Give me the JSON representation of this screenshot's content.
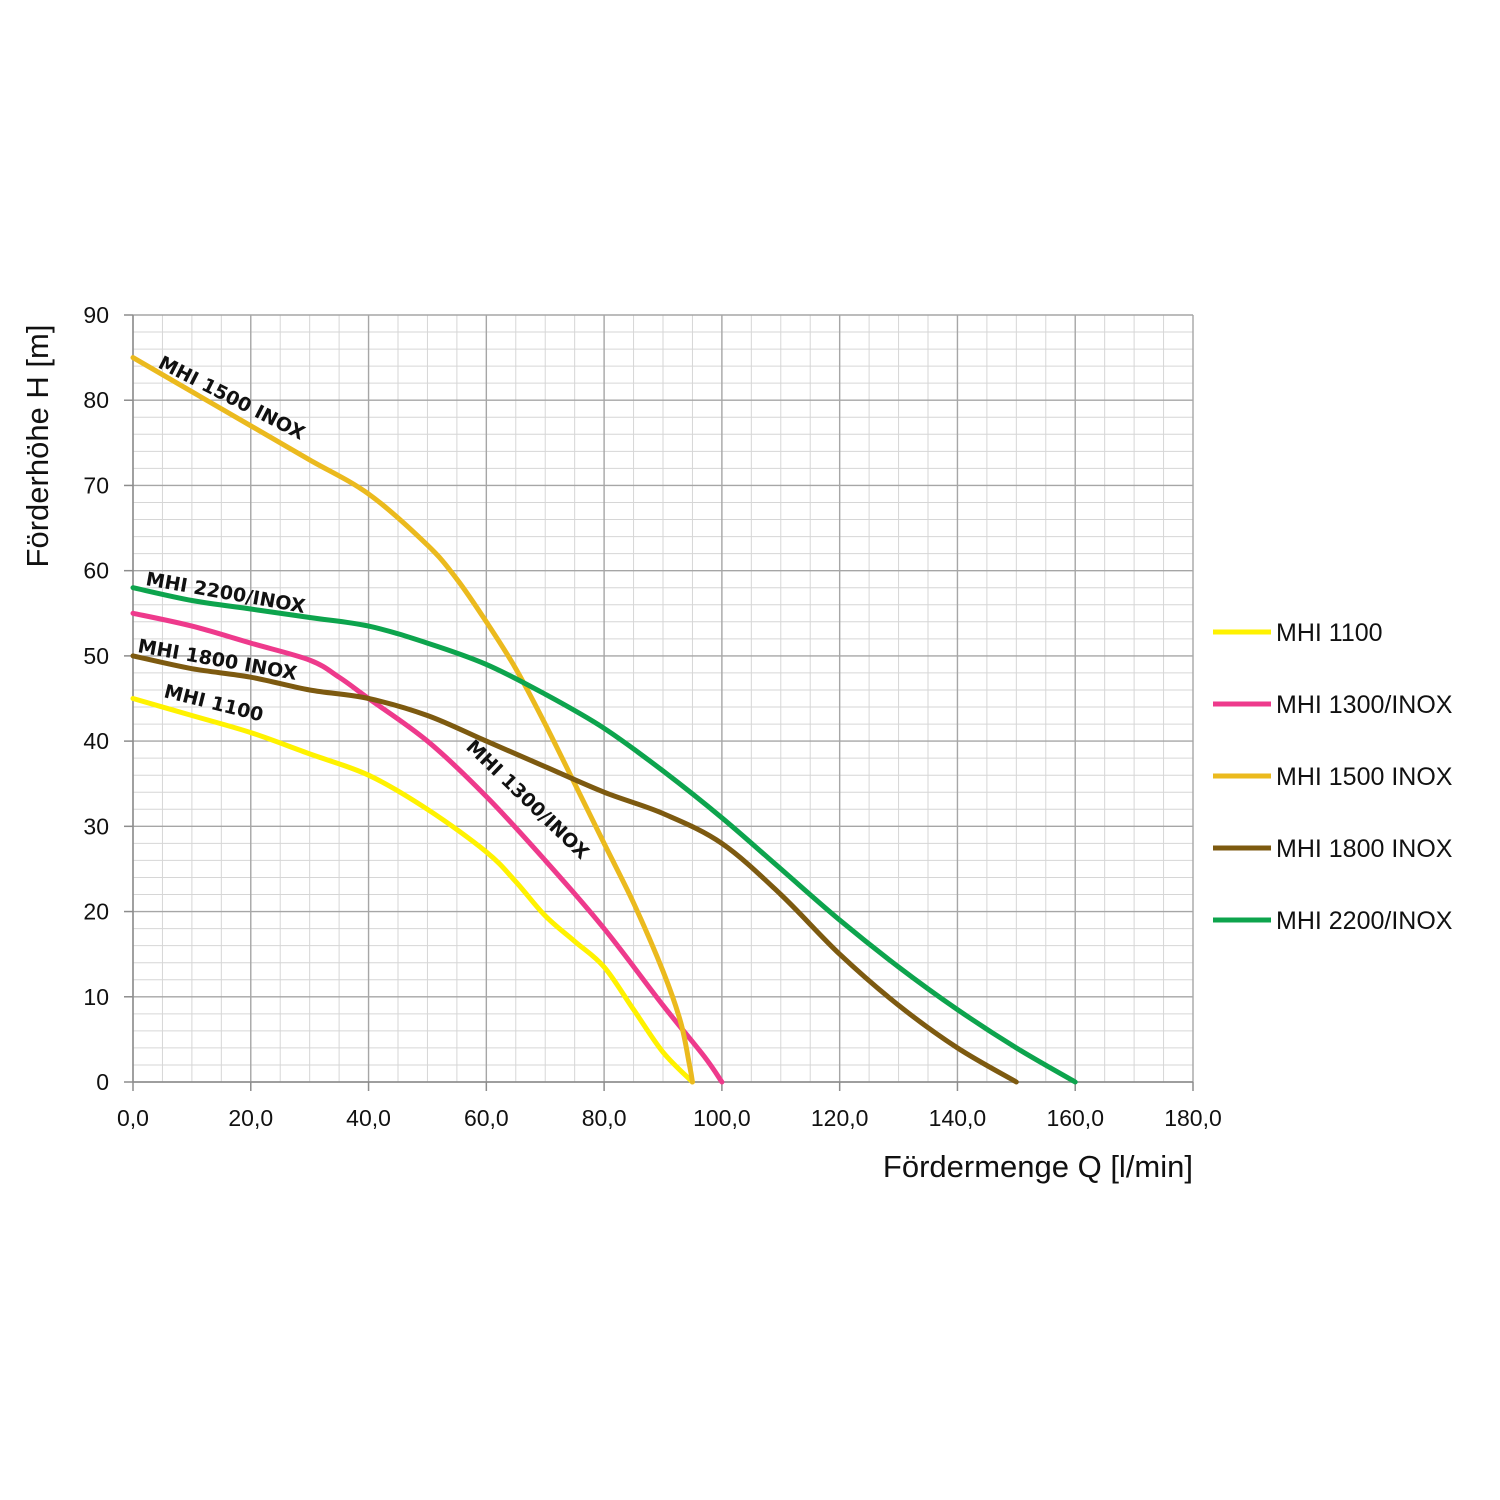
{
  "chart_data": {
    "type": "line",
    "xlabel": "Fördermenge Q [l/min]",
    "ylabel": "Förderhöhe H [m]",
    "xlim": [
      0,
      180
    ],
    "ylim": [
      0,
      90
    ],
    "xticks": [
      0,
      20,
      40,
      60,
      80,
      100,
      120,
      140,
      160,
      180
    ],
    "xtick_labels": [
      "0,0",
      "20,0",
      "40,0",
      "60,0",
      "80,0",
      "100,0",
      "120,0",
      "140,0",
      "160,0",
      "180,0"
    ],
    "yticks": [
      0,
      10,
      20,
      30,
      40,
      50,
      60,
      70,
      80,
      90
    ],
    "ytick_labels": [
      "0",
      "10",
      "20",
      "30",
      "40",
      "50",
      "60",
      "70",
      "80",
      "90"
    ],
    "grid": true,
    "legend_position": "right",
    "series": [
      {
        "name": "MHI 1100",
        "color": "#FFF200",
        "curve_label": "MHI 1100",
        "points": [
          [
            0,
            45
          ],
          [
            10,
            43
          ],
          [
            20,
            41
          ],
          [
            30,
            38.5
          ],
          [
            40,
            36
          ],
          [
            50,
            32
          ],
          [
            60,
            27
          ],
          [
            65,
            23.5
          ],
          [
            70,
            19.5
          ],
          [
            75,
            16.5
          ],
          [
            80,
            13.5
          ],
          [
            85,
            8.5
          ],
          [
            90,
            3.5
          ],
          [
            95,
            0
          ]
        ]
      },
      {
        "name": "MHI 1300/INOX",
        "color": "#EE3A8C",
        "curve_label": "MHI 1300/INOX",
        "points": [
          [
            0,
            55
          ],
          [
            10,
            53.5
          ],
          [
            20,
            51.5
          ],
          [
            30,
            49.5
          ],
          [
            35,
            47.5
          ],
          [
            40,
            45
          ],
          [
            50,
            40
          ],
          [
            60,
            33.5
          ],
          [
            70,
            26
          ],
          [
            80,
            18
          ],
          [
            90,
            9
          ],
          [
            97,
            3
          ],
          [
            100,
            0
          ]
        ]
      },
      {
        "name": "MHI 1500 INOX",
        "color": "#EBBA1E",
        "curve_label": "MHI 1500 INOX",
        "points": [
          [
            0,
            85
          ],
          [
            10,
            81
          ],
          [
            20,
            77
          ],
          [
            30,
            73
          ],
          [
            40,
            69
          ],
          [
            50,
            63
          ],
          [
            55,
            59
          ],
          [
            60,
            54
          ],
          [
            65,
            48.5
          ],
          [
            70,
            42
          ],
          [
            75,
            35
          ],
          [
            80,
            28
          ],
          [
            85,
            21
          ],
          [
            90,
            13
          ],
          [
            93,
            7
          ],
          [
            94.5,
            2
          ],
          [
            95,
            0
          ]
        ]
      },
      {
        "name": "MHI 1800 INOX",
        "color": "#7D5A10",
        "curve_label": "MHI 1800 INOX",
        "points": [
          [
            0,
            50
          ],
          [
            10,
            48.5
          ],
          [
            20,
            47.5
          ],
          [
            30,
            46
          ],
          [
            40,
            45
          ],
          [
            50,
            43
          ],
          [
            60,
            40
          ],
          [
            70,
            37
          ],
          [
            80,
            34
          ],
          [
            90,
            31.5
          ],
          [
            100,
            28
          ],
          [
            110,
            22
          ],
          [
            120,
            15
          ],
          [
            130,
            9
          ],
          [
            140,
            4
          ],
          [
            150,
            0
          ]
        ]
      },
      {
        "name": "MHI 2200/INOX",
        "color": "#0DA44D",
        "curve_label": "MHI 2200/INOX",
        "points": [
          [
            0,
            58
          ],
          [
            10,
            56.5
          ],
          [
            20,
            55.5
          ],
          [
            30,
            54.5
          ],
          [
            40,
            53.5
          ],
          [
            50,
            51.5
          ],
          [
            60,
            49
          ],
          [
            70,
            45.5
          ],
          [
            80,
            41.5
          ],
          [
            90,
            36.5
          ],
          [
            100,
            31
          ],
          [
            110,
            25
          ],
          [
            120,
            19
          ],
          [
            130,
            13.5
          ],
          [
            140,
            8.5
          ],
          [
            150,
            4
          ],
          [
            160,
            0
          ]
        ]
      }
    ]
  }
}
